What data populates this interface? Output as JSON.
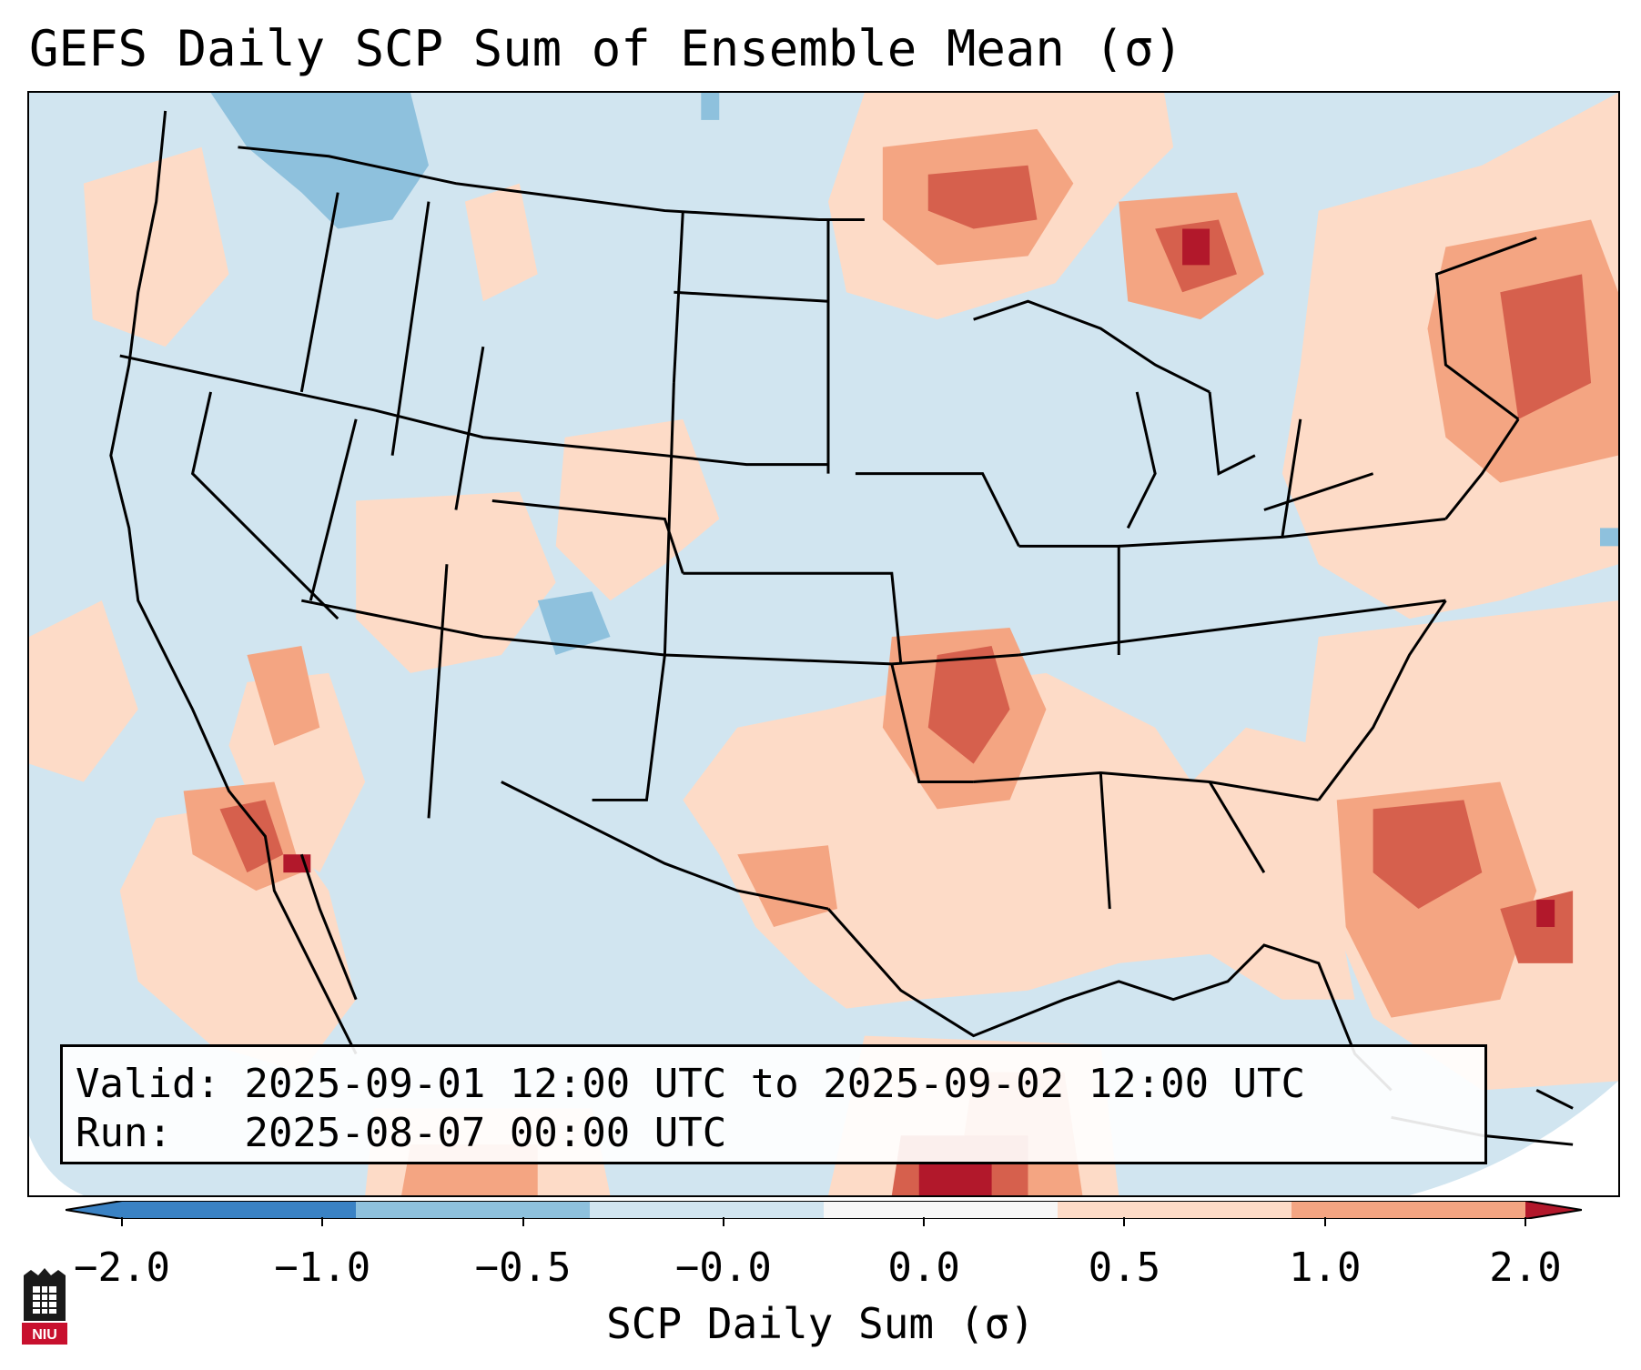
{
  "title": "GEFS Daily SCP Sum of Ensemble Mean (σ)",
  "info": {
    "valid_label": "Valid:",
    "valid_value": "2025-09-01 12:00 UTC to 2025-09-02 12:00 UTC",
    "run_label": "Run:",
    "run_value": "2025-08-07 00:00 UTC"
  },
  "colorbar": {
    "label": "SCP Daily Sum (σ)",
    "ticks": [
      "−2.0",
      "−1.0",
      "−0.5",
      "−0.0",
      "0.0",
      "0.5",
      "1.0",
      "2.0"
    ],
    "colors": [
      "#3a82c4",
      "#8ec1dd",
      "#d1e5f0",
      "#f7f7f7",
      "#fddbc7",
      "#f4a582",
      "#d6604d",
      "#b2182b"
    ]
  },
  "logo": {
    "text": "NIU",
    "color": "#c8102e"
  }
}
